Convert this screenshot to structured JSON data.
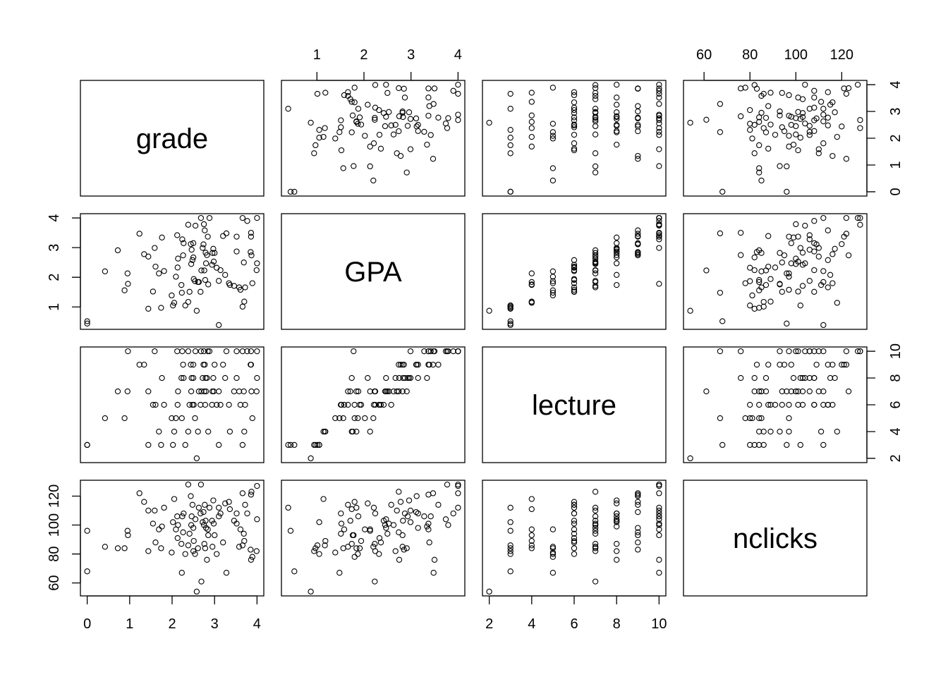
{
  "chart_data": {
    "type": "scatter-matrix",
    "variables": [
      "grade",
      "GPA",
      "lecture",
      "nclicks"
    ],
    "ticks": {
      "grade": [
        0,
        1,
        2,
        3,
        4
      ],
      "GPA": [
        1,
        2,
        3,
        4
      ],
      "lecture": [
        2,
        4,
        6,
        8,
        10
      ],
      "nclicks": [
        60,
        80,
        100,
        120
      ]
    },
    "grid": false,
    "observations": {
      "grade": [
        0.0,
        0.0,
        0.42,
        0.72,
        0.88,
        0.95,
        0.96,
        1.23,
        1.34,
        1.44,
        1.44,
        1.55,
        1.59,
        1.61,
        1.69,
        1.74,
        1.76,
        1.81,
        1.99,
        2.02,
        2.05,
        2.09,
        2.12,
        2.13,
        2.14,
        2.22,
        2.23,
        2.24,
        2.26,
        2.27,
        2.31,
        2.38,
        2.38,
        2.41,
        2.44,
        2.45,
        2.46,
        2.48,
        2.5,
        2.5,
        2.51,
        2.54,
        2.55,
        2.58,
        2.61,
        2.63,
        2.67,
        2.68,
        2.69,
        2.72,
        2.74,
        2.75,
        2.76,
        2.77,
        2.78,
        2.79,
        2.8,
        2.82,
        2.84,
        2.85,
        2.88,
        2.94,
        2.95,
        2.97,
        2.98,
        3.0,
        3.05,
        3.1,
        3.1,
        3.14,
        3.2,
        3.25,
        3.28,
        3.34,
        3.36,
        3.46,
        3.52,
        3.52,
        3.58,
        3.61,
        3.66,
        3.66,
        3.69,
        3.7,
        3.72,
        3.77,
        3.85,
        3.86,
        3.86,
        3.87,
        3.89,
        3.99,
        4.0,
        4.0
      ],
      "GPA": [
        0.52,
        0.44,
        2.2,
        2.91,
        1.56,
        2.13,
        1.78,
        3.47,
        2.78,
        2.7,
        0.94,
        1.52,
        2.99,
        2.36,
        2.13,
        0.97,
        3.34,
        2.21,
        1.39,
        1.05,
        1.14,
        2.02,
        3.42,
        2.33,
        2.63,
        1.74,
        1.48,
        3.28,
        2.74,
        3.15,
        1.05,
        3.77,
        1.17,
        1.51,
        3.12,
        2.45,
        2.93,
        2.58,
        2.67,
        3.15,
        1.94,
        1.87,
        3.74,
        0.87,
        1.84,
        1.84,
        1.51,
        4.0,
        2.23,
        2.99,
        3.11,
        3.79,
        2.23,
        3.58,
        1.91,
        2.83,
        2.47,
        2.75,
        3.37,
        1.76,
        4.0,
        2.42,
        2.82,
        2.96,
        2.53,
        2.82,
        2.32,
        1.88,
        0.39,
        2.24,
        3.39,
        2.08,
        3.48,
        1.8,
        1.74,
        1.71,
        3.37,
        2.87,
        1.66,
        1.58,
        4.0,
        1.01,
        2.5,
        1.18,
        1.66,
        3.9,
        2.85,
        3.5,
        3.37,
        2.74,
        1.8,
        2.24,
        2.47,
        4.0
      ],
      "lecture": [
        3,
        3,
        5,
        7,
        5,
        7,
        10,
        9,
        9,
        7,
        3,
        6,
        10,
        6,
        4,
        3,
        8,
        6,
        5,
        3,
        4,
        5,
        10,
        6,
        7,
        8,
        5,
        10,
        9,
        8,
        3,
        10,
        4,
        6,
        9,
        7,
        8,
        6,
        8,
        9,
        6,
        5,
        10,
        2,
        4,
        7,
        6,
        10,
        7,
        8,
        9,
        10,
        7,
        9,
        6,
        8,
        7,
        8,
        10,
        4,
        10,
        6,
        7,
        8,
        7,
        9,
        6,
        7,
        3,
        6,
        9,
        8,
        10,
        6,
        4,
        7,
        10,
        8,
        7,
        6,
        10,
        3,
        7,
        4,
        6,
        10,
        9,
        10,
        9,
        7,
        5,
        7,
        8,
        10
      ],
      "nclicks": [
        68,
        96,
        85,
        84,
        84,
        96,
        93,
        122,
        116,
        110,
        82,
        101,
        110,
        88,
        97,
        84,
        99,
        112,
        81,
        102,
        118,
        97,
        106,
        91,
        100,
        87,
        67,
        106,
        95,
        108,
        80,
        128,
        86,
        94,
        120,
        100,
        106,
        114,
        82,
        98,
        89,
        80,
        104,
        54,
        84,
        112,
        108,
        128,
        61,
        102,
        109,
        100,
        87,
        114,
        84,
        103,
        98,
        76,
        97,
        93,
        112,
        103,
        85,
        117,
        101,
        93,
        80,
        106,
        112,
        108,
        88,
        115,
        67,
        116,
        111,
        103,
        101,
        108,
        85,
        97,
        122,
        86,
        94,
        89,
        114,
        108,
        83,
        76,
        121,
        123,
        78,
        82,
        104,
        127
      ]
    }
  }
}
